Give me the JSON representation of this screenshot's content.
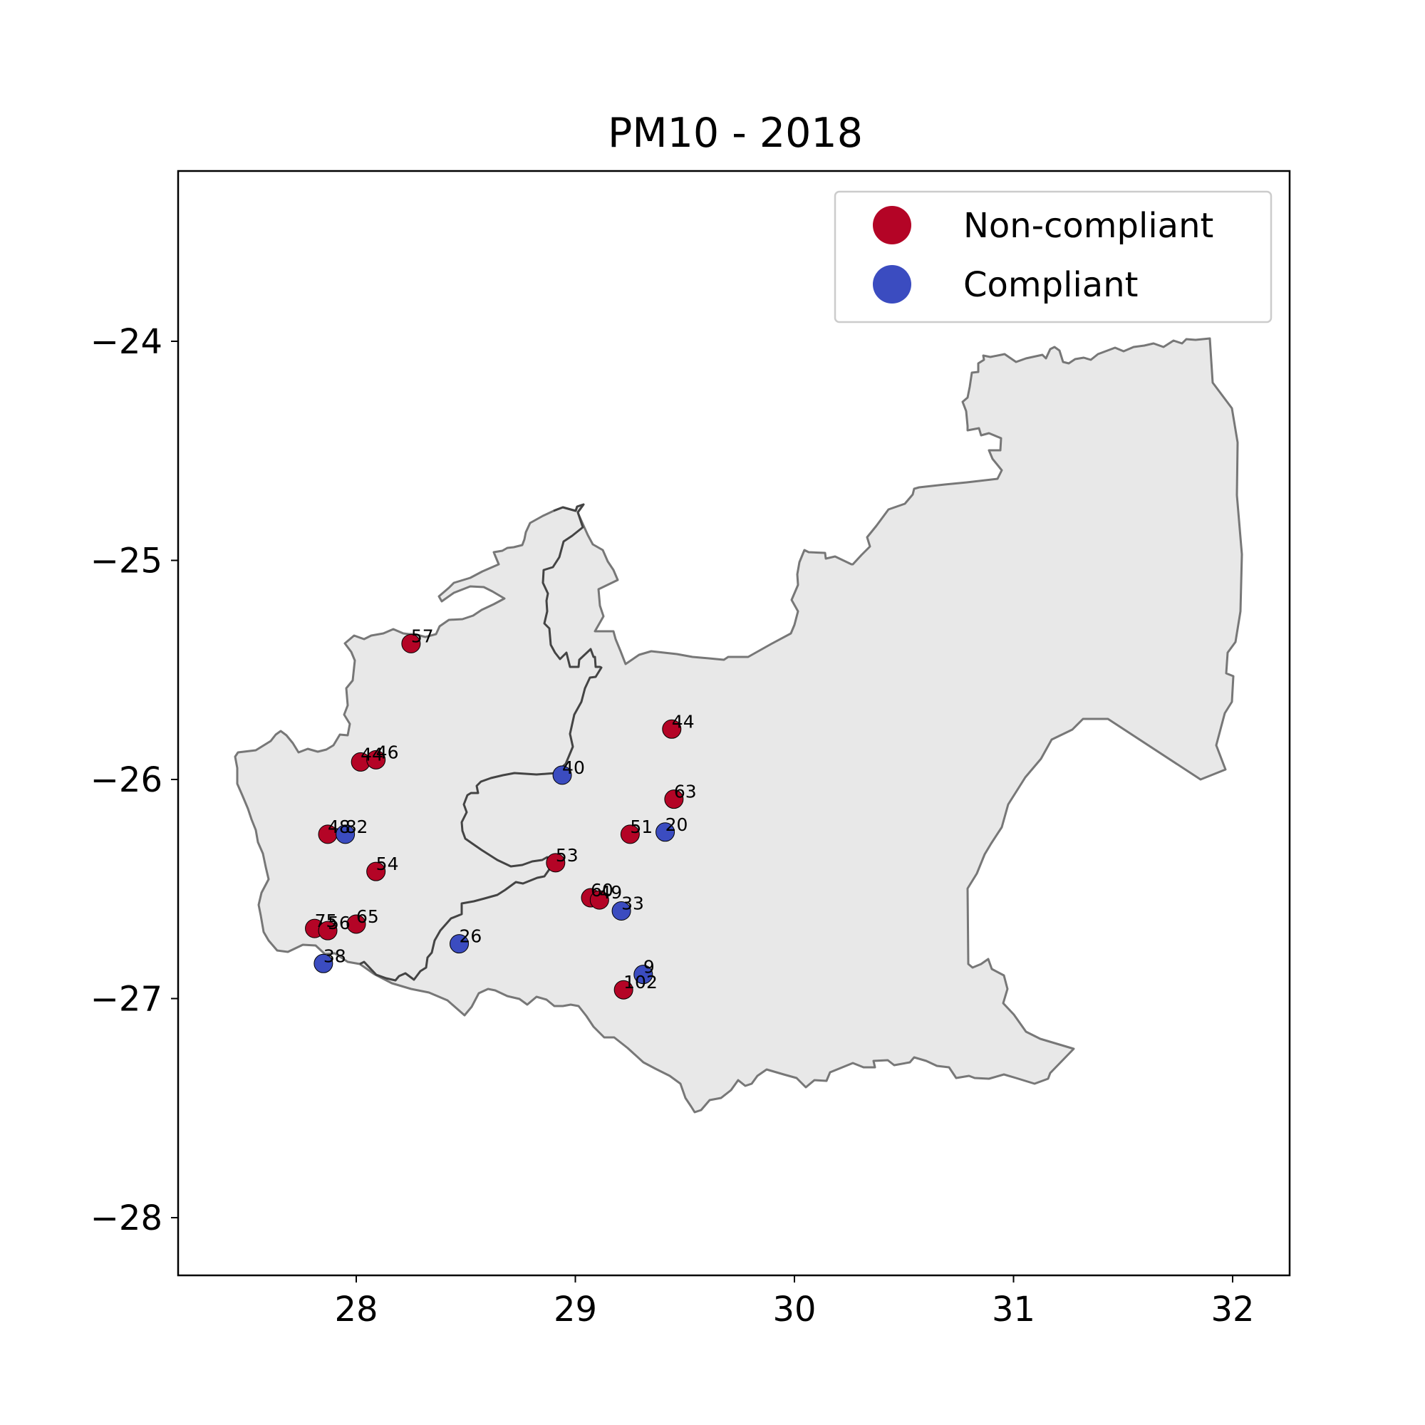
{
  "chart_data": {
    "type": "scatter",
    "title": "PM10 - 2018",
    "xlabel": "",
    "ylabel": "",
    "xlim": [
      27.18,
      32.27
    ],
    "ylim": [
      -28.25,
      -23.22
    ],
    "xticks": [
      {
        "value": 28,
        "label": "28"
      },
      {
        "value": 29,
        "label": "29"
      },
      {
        "value": 30,
        "label": "30"
      },
      {
        "value": 31,
        "label": "31"
      },
      {
        "value": 32,
        "label": "32"
      }
    ],
    "yticks": [
      {
        "value": -24,
        "label": "−24"
      },
      {
        "value": -25,
        "label": "−25"
      },
      {
        "value": -26,
        "label": "−26"
      },
      {
        "value": -27,
        "label": "−27"
      },
      {
        "value": -28,
        "label": "−28"
      }
    ],
    "grid": false,
    "legend": {
      "placement": "top-right",
      "entries": [
        {
          "label": "Non-compliant",
          "color": "#b40426"
        },
        {
          "label": "Compliant",
          "color": "#3b4cc0"
        }
      ]
    },
    "series": [
      {
        "name": "Non-compliant",
        "color": "#b40426",
        "points": [
          {
            "x": 28.25,
            "y": -25.38,
            "label": "57"
          },
          {
            "x": 28.02,
            "y": -25.92,
            "label": "44"
          },
          {
            "x": 28.09,
            "y": -25.91,
            "label": "46"
          },
          {
            "x": 29.44,
            "y": -25.77,
            "label": "44"
          },
          {
            "x": 29.45,
            "y": -26.09,
            "label": "63"
          },
          {
            "x": 27.87,
            "y": -26.25,
            "label": "48"
          },
          {
            "x": 29.25,
            "y": -26.25,
            "label": "51"
          },
          {
            "x": 28.09,
            "y": -26.42,
            "label": "54"
          },
          {
            "x": 28.91,
            "y": -26.38,
            "label": "53"
          },
          {
            "x": 29.07,
            "y": -26.54,
            "label": "60"
          },
          {
            "x": 29.11,
            "y": -26.55,
            "label": "49"
          },
          {
            "x": 27.81,
            "y": -26.68,
            "label": "75"
          },
          {
            "x": 27.87,
            "y": -26.69,
            "label": "56"
          },
          {
            "x": 28.0,
            "y": -26.66,
            "label": "65"
          },
          {
            "x": 29.22,
            "y": -26.96,
            "label": "102"
          }
        ]
      },
      {
        "name": "Compliant",
        "color": "#3b4cc0",
        "points": [
          {
            "x": 28.94,
            "y": -25.98,
            "label": "40"
          },
          {
            "x": 27.95,
            "y": -26.25,
            "label": "82"
          },
          {
            "x": 29.41,
            "y": -26.24,
            "label": "20"
          },
          {
            "x": 29.21,
            "y": -26.6,
            "label": "33"
          },
          {
            "x": 28.47,
            "y": -26.75,
            "label": "26"
          },
          {
            "x": 29.31,
            "y": -26.89,
            "label": "9"
          },
          {
            "x": 27.85,
            "y": -26.84,
            "label": "38"
          }
        ]
      }
    ],
    "colors": {
      "region_fill": "#e8e8e8",
      "region_outline": "#777777",
      "inner_boundary": "#444444"
    }
  }
}
